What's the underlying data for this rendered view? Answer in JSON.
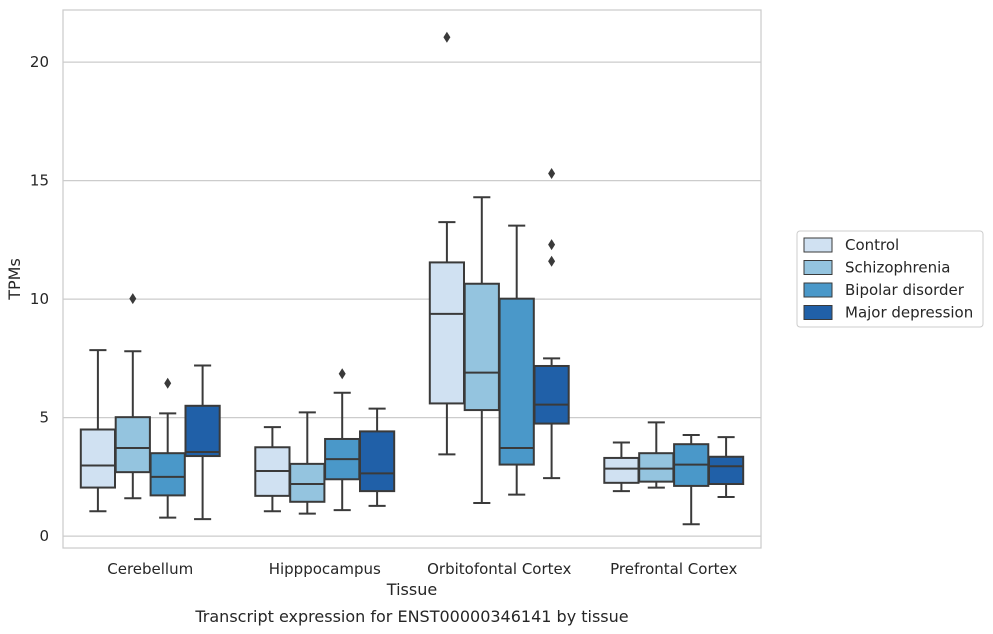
{
  "caption": "Transcript expression for ENST00000346141 by tissue",
  "chart_data": {
    "type": "box",
    "title": "",
    "xlabel": "Tissue",
    "ylabel": "TPMs",
    "ylim": [
      -0.5,
      22.2
    ],
    "yticks": [
      0,
      5,
      10,
      15,
      20
    ],
    "grid": "horizontal",
    "legend_position": "right",
    "categories": [
      "Cerebellum",
      "Hipppocampus",
      "Orbitofontal Cortex",
      "Prefrontal Cortex"
    ],
    "series": [
      {
        "name": "Control",
        "color": "#d0e1f2",
        "boxes": [
          {
            "whislo": 1.05,
            "q1": 2.05,
            "med": 2.98,
            "q3": 4.5,
            "whishi": 7.85,
            "fliers": []
          },
          {
            "whislo": 1.05,
            "q1": 1.7,
            "med": 2.75,
            "q3": 3.75,
            "whishi": 4.6,
            "fliers": []
          },
          {
            "whislo": 3.45,
            "q1": 5.6,
            "med": 9.38,
            "q3": 11.55,
            "whishi": 13.25,
            "fliers": [
              21.05
            ]
          },
          {
            "whislo": 1.9,
            "q1": 2.25,
            "med": 2.85,
            "q3": 3.3,
            "whishi": 3.95,
            "fliers": []
          }
        ]
      },
      {
        "name": "Schizophrenia",
        "color": "#94c4df",
        "boxes": [
          {
            "whislo": 1.6,
            "q1": 2.7,
            "med": 3.72,
            "q3": 5.02,
            "whishi": 7.8,
            "fliers": [
              10.02
            ]
          },
          {
            "whislo": 0.95,
            "q1": 1.45,
            "med": 2.2,
            "q3": 3.05,
            "whishi": 5.22,
            "fliers": []
          },
          {
            "whislo": 1.4,
            "q1": 5.32,
            "med": 6.9,
            "q3": 10.65,
            "whishi": 14.3,
            "fliers": []
          },
          {
            "whislo": 2.05,
            "q1": 2.3,
            "med": 2.85,
            "q3": 3.5,
            "whishi": 4.8,
            "fliers": []
          }
        ]
      },
      {
        "name": "Bipolar disorder",
        "color": "#4a98c9",
        "boxes": [
          {
            "whislo": 0.78,
            "q1": 1.72,
            "med": 2.5,
            "q3": 3.5,
            "whishi": 5.18,
            "fliers": [
              6.45
            ]
          },
          {
            "whislo": 1.1,
            "q1": 2.4,
            "med": 3.25,
            "q3": 4.1,
            "whishi": 6.05,
            "fliers": [
              6.85
            ]
          },
          {
            "whislo": 1.75,
            "q1": 3.02,
            "med": 3.72,
            "q3": 10.02,
            "whishi": 13.1,
            "fliers": []
          },
          {
            "whislo": 0.5,
            "q1": 2.12,
            "med": 3.02,
            "q3": 3.88,
            "whishi": 4.27,
            "fliers": []
          }
        ]
      },
      {
        "name": "Major depression",
        "color": "#2060a8",
        "boxes": [
          {
            "whislo": 0.72,
            "q1": 3.38,
            "med": 3.55,
            "q3": 5.5,
            "whishi": 7.2,
            "fliers": []
          },
          {
            "whislo": 1.28,
            "q1": 1.9,
            "med": 2.65,
            "q3": 4.42,
            "whishi": 5.38,
            "fliers": []
          },
          {
            "whislo": 2.45,
            "q1": 4.75,
            "med": 5.55,
            "q3": 7.18,
            "whishi": 7.5,
            "fliers": [
              11.6,
              12.3,
              15.3
            ]
          },
          {
            "whislo": 1.65,
            "q1": 2.2,
            "med": 2.95,
            "q3": 3.35,
            "whishi": 4.18,
            "fliers": []
          }
        ]
      }
    ]
  }
}
